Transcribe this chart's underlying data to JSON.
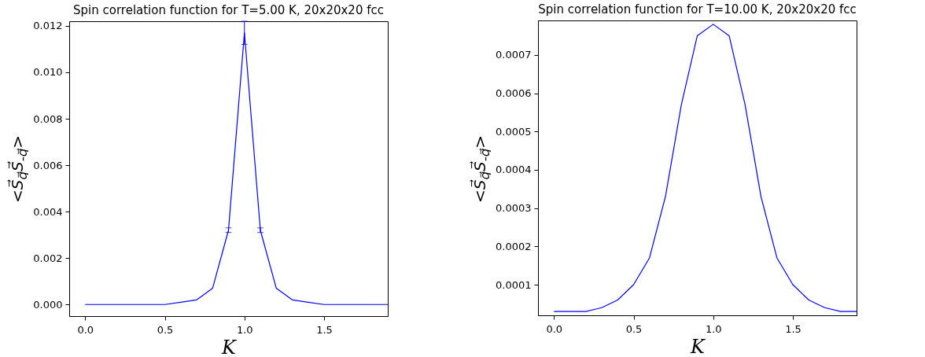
{
  "chart_data": [
    {
      "type": "line",
      "title": "Spin correlation function for T=5.00 K, 20x20x20 fcc",
      "xlabel": "K",
      "ylabel": "<S⃗$_{q⃗}$S⃗$_{-q⃗}$>",
      "x": [
        0.0,
        0.1,
        0.2,
        0.3,
        0.4,
        0.5,
        0.6,
        0.7,
        0.8,
        0.9,
        1.0,
        1.1,
        1.2,
        1.3,
        1.4,
        1.5,
        1.6,
        1.7,
        1.8,
        1.9
      ],
      "series": [
        {
          "color": "#0000ff",
          "values": [
            0,
            0,
            0,
            0,
            0,
            0,
            0.0001,
            0.0002,
            0.0007,
            0.0032,
            0.0117,
            0.0032,
            0.0007,
            0.0002,
            0.0001,
            0,
            0,
            0,
            0,
            0
          ],
          "errors": [
            null,
            null,
            null,
            null,
            null,
            null,
            null,
            null,
            null,
            0.0001,
            0.0005,
            0.0001,
            null,
            null,
            null,
            null,
            null,
            null,
            null,
            null
          ]
        }
      ],
      "xlim": [
        -0.1,
        1.9
      ],
      "ylim": [
        -0.0005,
        0.0122
      ],
      "xticks": [
        {
          "value": 0,
          "label": "0.0"
        },
        {
          "value": 0.5,
          "label": "0.5"
        },
        {
          "value": 1,
          "label": "1.0"
        },
        {
          "value": 1.5,
          "label": "1.5"
        }
      ],
      "yticks": [
        {
          "value": 0,
          "label": "0.000"
        },
        {
          "value": 0.002,
          "label": "0.002"
        },
        {
          "value": 0.004,
          "label": "0.004"
        },
        {
          "value": 0.006,
          "label": "0.006"
        },
        {
          "value": 0.008,
          "label": "0.008"
        },
        {
          "value": 0.01,
          "label": "0.010"
        },
        {
          "value": 0.012,
          "label": "0.012"
        }
      ],
      "grid": false,
      "line_style": "solid"
    },
    {
      "type": "line",
      "title": "Spin correlation function for T=10.00 K, 20x20x20 fcc",
      "xlabel": "K",
      "ylabel": "<S⃗$_{q⃗}$S⃗$_{-q⃗}$>",
      "x": [
        0.0,
        0.1,
        0.2,
        0.3,
        0.4,
        0.5,
        0.6,
        0.7,
        0.8,
        0.9,
        1.0,
        1.1,
        1.2,
        1.3,
        1.4,
        1.5,
        1.6,
        1.7,
        1.8,
        1.9
      ],
      "series": [
        {
          "color": "#0000ff",
          "values": [
            3e-05,
            3e-05,
            3e-05,
            4e-05,
            6e-05,
            0.0001,
            0.00017,
            0.00033,
            0.00057,
            0.00075,
            0.00078,
            0.00075,
            0.00057,
            0.00033,
            0.00017,
            0.0001,
            6e-05,
            4e-05,
            3e-05,
            3e-05
          ]
        }
      ],
      "xlim": [
        -0.1,
        1.9
      ],
      "ylim": [
        2e-05,
        0.00079
      ],
      "xticks": [
        {
          "value": 0,
          "label": "0.0"
        },
        {
          "value": 0.5,
          "label": "0.5"
        },
        {
          "value": 1,
          "label": "1.0"
        },
        {
          "value": 1.5,
          "label": "1.5"
        }
      ],
      "yticks": [
        0.0001,
        0.0002,
        0.0003,
        0.0004,
        0.0005,
        0.0006,
        0.0007
      ],
      "grid": false,
      "line_style": "solid"
    }
  ]
}
